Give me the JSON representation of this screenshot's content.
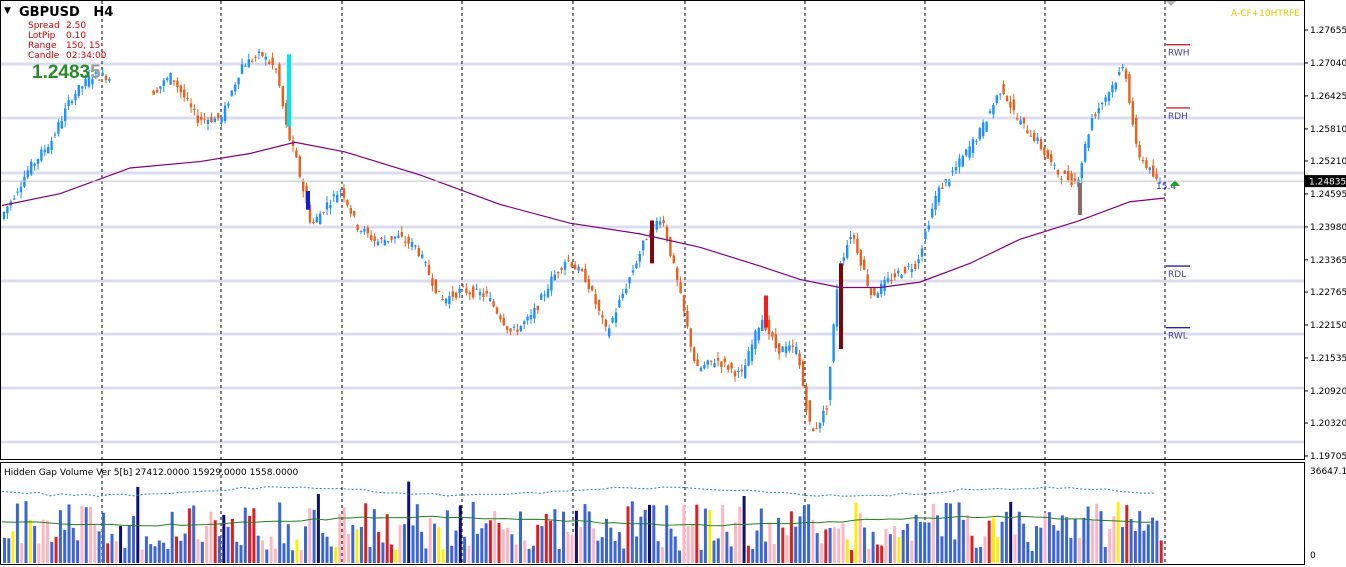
{
  "chart_header": {
    "symbol": "GBPUSD",
    "timeframe": "H4",
    "menu_icon": "triangle-down-icon"
  },
  "info_panel": {
    "spread_label": "Spread",
    "spread_value": "2.50",
    "lotpip_label": "LotPip",
    "lotpip_value": "0.10",
    "range_label": "Range",
    "range_value": "150, 15",
    "candle_label": "Candle",
    "candle_value": "02:34:00"
  },
  "big_price": {
    "main": "1.2483",
    "last_digit": "5"
  },
  "watermark": "A-CF+10HTRFE",
  "price_axis": {
    "ticks": [
      "1.27655",
      "1.27040",
      "1.26425",
      "1.25810",
      "1.25210",
      "1.24595",
      "1.23980",
      "1.23365",
      "1.22765",
      "1.22150",
      "1.21535",
      "1.20920",
      "1.20320",
      "1.19705"
    ],
    "current_price": "1.24835"
  },
  "levels": [
    {
      "label": "RWH",
      "price": 1.2738,
      "color": "#e02020"
    },
    {
      "label": "RDH",
      "price": 1.262,
      "color": "#e02020"
    },
    {
      "label": "RDL",
      "price": 1.2325,
      "color": "#2020c0"
    },
    {
      "label": "RWL",
      "price": 1.221,
      "color": "#2020c0"
    }
  ],
  "countdown_label": "15.4",
  "subwindow": {
    "title": "Hidden Gap Volume Ver 5[b] 27412.0000 15929.0000 1558.0000",
    "scale_max": "36647.1",
    "scale_min": "0"
  },
  "colors": {
    "bull_candle": "#1e90ff",
    "bear_candle": "#e8601c",
    "ma_line": "#800080",
    "grid_band": "#dcdcf0",
    "vol_blue": "#3a66d8",
    "vol_red": "#dd1f1f",
    "vol_pink": "#ffb6c1",
    "vol_yellow": "#ffee00",
    "vol_navy": "#101070"
  }
}
